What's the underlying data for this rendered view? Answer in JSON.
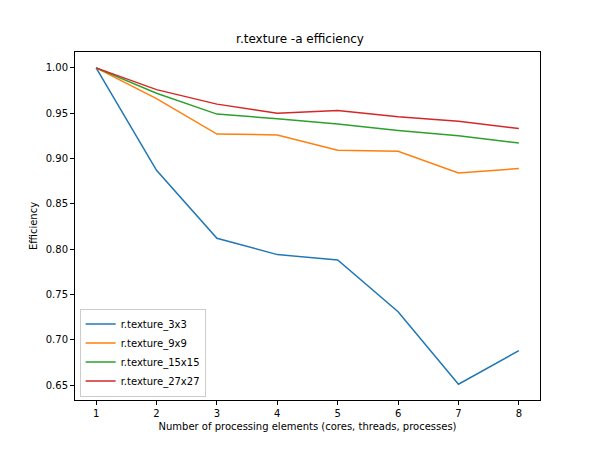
{
  "chart_data": {
    "type": "line",
    "title": "r.texture -a efficiency",
    "x_label": "Number of processing elements (cores, threads, processes)",
    "y_label": "Efficiency",
    "x": [
      1,
      2,
      3,
      4,
      5,
      6,
      7,
      8
    ],
    "series": [
      {
        "name": "r.texture_3x3",
        "color": "#1f77b4",
        "values": [
          1.0,
          0.887,
          0.812,
          0.794,
          0.788,
          0.731,
          0.651,
          0.688
        ]
      },
      {
        "name": "r.texture_9x9",
        "color": "#ff7f0e",
        "values": [
          1.0,
          0.966,
          0.927,
          0.926,
          0.909,
          0.908,
          0.884,
          0.889
        ]
      },
      {
        "name": "r.texture_15x15",
        "color": "#2ca02c",
        "values": [
          1.0,
          0.972,
          0.949,
          0.944,
          0.938,
          0.931,
          0.925,
          0.917
        ]
      },
      {
        "name": "r.texture_27x27",
        "color": "#d62728",
        "values": [
          1.0,
          0.976,
          0.96,
          0.95,
          0.953,
          0.946,
          0.941,
          0.933
        ]
      }
    ],
    "xlim": [
      0.65,
      8.35
    ],
    "xticks": [
      1,
      2,
      3,
      4,
      5,
      6,
      7,
      8
    ],
    "ylim": [
      0.6336,
      1.0175
    ],
    "yticks": [
      0.65,
      {
        "value": 0.7,
        "label": "0.70"
      },
      0.75,
      {
        "value": 0.8,
        "label": "0.80"
      },
      0.85,
      {
        "value": 0.9,
        "label": "0.90"
      },
      0.95,
      {
        "value": 1.0,
        "label": "1.00"
      }
    ],
    "grid": false,
    "legend": "lower left"
  }
}
